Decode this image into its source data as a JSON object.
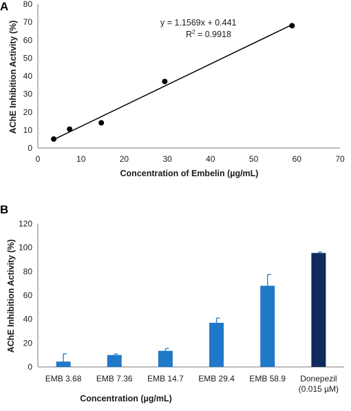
{
  "chart_data": [
    {
      "panel": "A",
      "type": "scatter",
      "title": "",
      "xlabel": "Concentration of Embelin (µg/mL)",
      "ylabel": "AChE Inhibition Activity (%)",
      "xlim": [
        0,
        70
      ],
      "ylim": [
        0,
        80
      ],
      "xticks": [
        0,
        10,
        20,
        30,
        40,
        50,
        60,
        70
      ],
      "yticks": [
        0,
        10,
        20,
        30,
        40,
        50,
        60,
        70,
        80
      ],
      "points": [
        {
          "x": 3.68,
          "y": 5
        },
        {
          "x": 7.36,
          "y": 10.5
        },
        {
          "x": 14.7,
          "y": 14
        },
        {
          "x": 29.4,
          "y": 37
        },
        {
          "x": 58.9,
          "y": 68
        }
      ],
      "trendline": {
        "slope": 1.1569,
        "intercept": 0.441,
        "x_range": [
          3.68,
          58.9
        ]
      },
      "equation": "y = 1.1569x + 0.441",
      "r_squared_label": "R",
      "r_squared_value": " = 0.9918",
      "grid": false,
      "colors": {
        "points": "#000000",
        "line": "#000000"
      }
    },
    {
      "panel": "B",
      "type": "bar",
      "title": "",
      "xlabel": "Concentration (µg/mL)",
      "ylabel": "AChE Inhibition Activity (%)",
      "ylim": [
        0,
        120
      ],
      "yticks": [
        0,
        20,
        40,
        60,
        80,
        100,
        120
      ],
      "categories": [
        [
          "EMB 3.68"
        ],
        [
          "EMB 7.36"
        ],
        [
          "EMB 14.7"
        ],
        [
          "EMB 29.4"
        ],
        [
          "EMB 58.9"
        ],
        [
          "Donepezil",
          "(0.015 µM)"
        ]
      ],
      "values": [
        4.5,
        10,
        13.5,
        37,
        68,
        95.5
      ],
      "errors": [
        6.5,
        0.8,
        2,
        4,
        9.5,
        0.8
      ],
      "bar_colors": [
        "#1f78c8",
        "#1f78c8",
        "#1f78c8",
        "#1f78c8",
        "#1f78c8",
        "#0f2a5c"
      ],
      "error_color": "#1f78c8",
      "grid": false
    }
  ],
  "labels": {
    "panel_a": "A",
    "panel_b": "B"
  }
}
